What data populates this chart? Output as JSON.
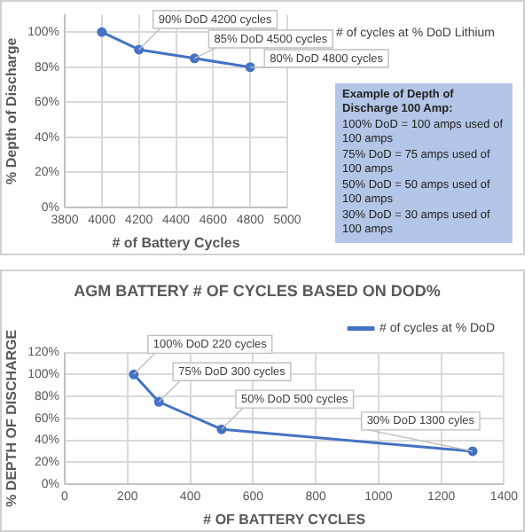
{
  "chart_data": [
    {
      "type": "line",
      "xlabel": "# of Battery Cycles",
      "ylabel": "% Depth of Discharge",
      "x": [
        4000,
        4200,
        4500,
        4800
      ],
      "series": [
        {
          "name": "# of cycles at % DoD Lithium",
          "color": "#4472c4",
          "values": [
            100,
            90,
            85,
            80
          ]
        }
      ],
      "xlim": [
        3800,
        5000
      ],
      "xticks": [
        3800,
        4000,
        4200,
        4400,
        4600,
        4800,
        5000
      ],
      "ylim": [
        0,
        110
      ],
      "yticks": [
        {
          "value": 0,
          "label": "0%"
        },
        {
          "value": 20,
          "label": "20%"
        },
        {
          "value": 40,
          "label": "40%"
        },
        {
          "value": 60,
          "label": "60%"
        },
        {
          "value": 80,
          "label": "80%"
        },
        {
          "value": 100,
          "label": "100%"
        }
      ],
      "grid": true,
      "legend": "right",
      "marker": "circle",
      "line_style": "solid",
      "annotations": [
        {
          "text": "90% DoD 4200 cycles",
          "x": 4200,
          "y": 90
        },
        {
          "text": "85% DoD 4500 cycles",
          "x": 4500,
          "y": 85
        },
        {
          "text": "80% DoD 4800 cycles",
          "x": 4800,
          "y": 80
        },
        "Example of Depth of Discharge 100 Amp:\n100% DoD = 100 amps used of 100 amps\n75% DoD = 75 amps used of 100 amps\n50% DoD = 50 amps used of 100 amps\n30% DoD = 30 amps used of 100 amps"
      ]
    },
    {
      "type": "line",
      "title": "AGM BATTERY # OF CYCLES BASED ON DOD%",
      "xlabel": "# OF BATTERY CYCLES",
      "ylabel": "% DEPTH OF DISCHARGE",
      "x": [
        220,
        300,
        500,
        1300
      ],
      "series": [
        {
          "name": "# of cycles at % DoD",
          "color": "#4472c4",
          "values": [
            100,
            75,
            50,
            30
          ]
        }
      ],
      "xlim": [
        0,
        1400
      ],
      "xticks": [
        0,
        200,
        400,
        600,
        800,
        1000,
        1200,
        1400
      ],
      "ylim": [
        0,
        120
      ],
      "yticks": [
        {
          "value": 0,
          "label": "0%"
        },
        {
          "value": 20,
          "label": "20%"
        },
        {
          "value": 40,
          "label": "40%"
        },
        {
          "value": 60,
          "label": "60%"
        },
        {
          "value": 80,
          "label": "80%"
        },
        {
          "value": 100,
          "label": "100%"
        },
        {
          "value": 120,
          "label": "120%"
        }
      ],
      "grid": true,
      "legend": "top right",
      "marker": "circle",
      "line_style": "solid",
      "annotations": [
        {
          "text": "100% DoD 220 cycles",
          "x": 220,
          "y": 100
        },
        {
          "text": "75% DoD 300 cycles",
          "x": 300,
          "y": 75
        },
        {
          "text": "50% DoD 500 cycles",
          "x": 500,
          "y": 50
        },
        {
          "text": "30% DoD 1300 cyles",
          "x": 1300,
          "y": 30
        }
      ]
    }
  ]
}
